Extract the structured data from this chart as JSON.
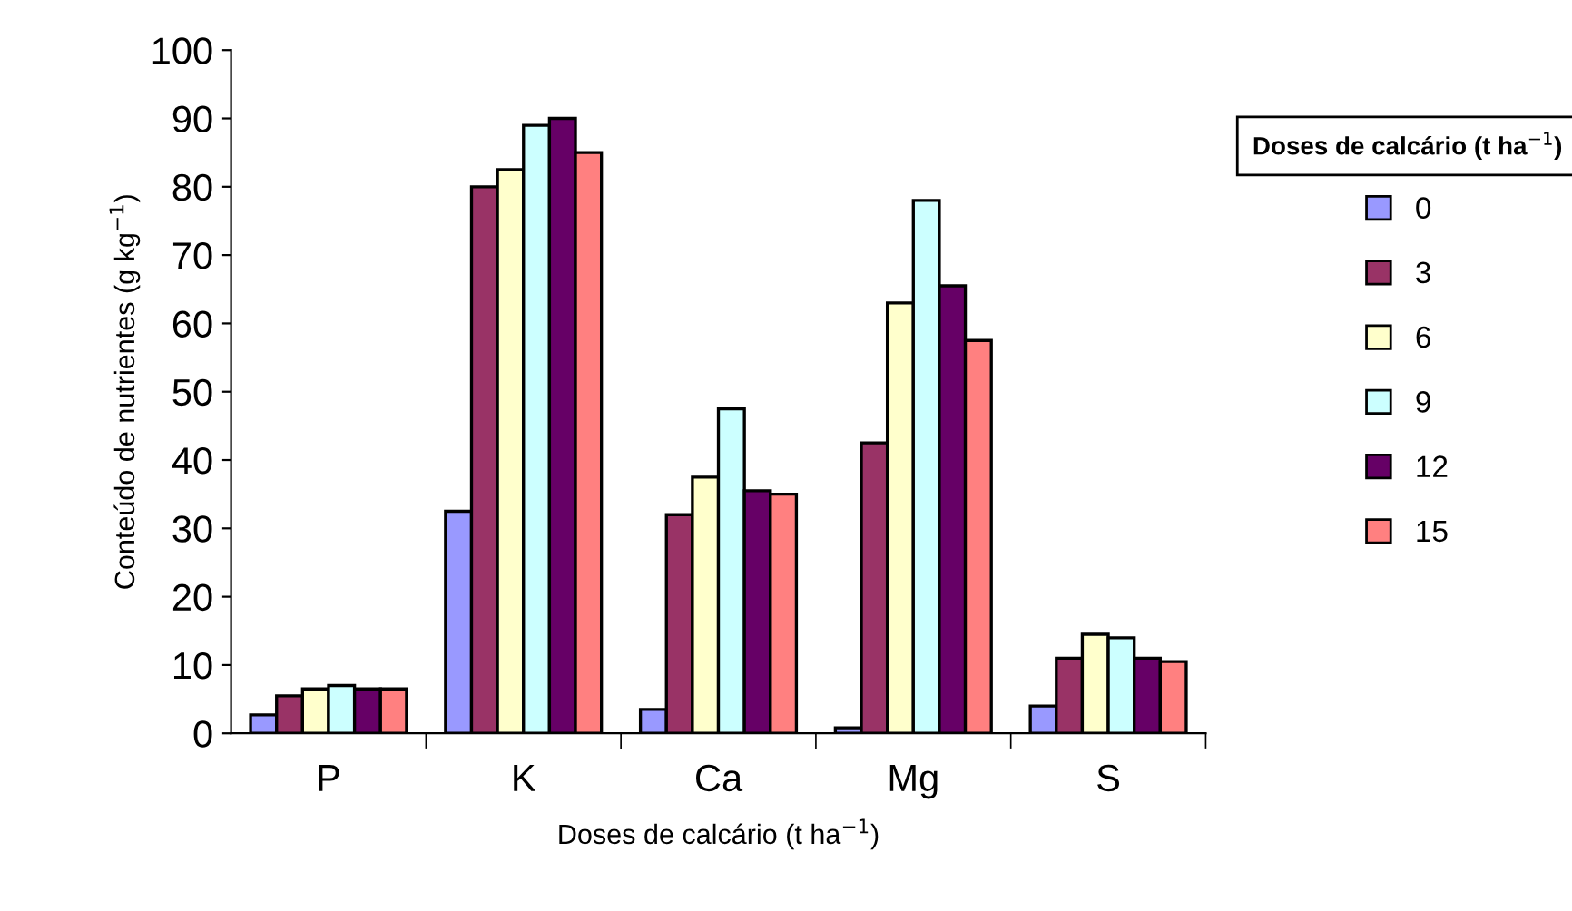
{
  "chart_data": {
    "type": "bar",
    "xlabel": "Doses de calcário (t ha$^{−1}$)",
    "ylabel": "Conteúdo de nutrientes (g kg$^{−1}$)",
    "legend_title": "Doses de calcário (t ha$^{−1}$)",
    "categories": [
      "P",
      "K",
      "Ca",
      "Mg",
      "S"
    ],
    "series": [
      {
        "name": "0",
        "color": "#9999ff",
        "values": [
          2.7,
          32.5,
          3.5,
          0.8,
          4
        ]
      },
      {
        "name": "3",
        "color": "#993366",
        "values": [
          5.5,
          80,
          32,
          42.5,
          11
        ]
      },
      {
        "name": "6",
        "color": "#ffffcc",
        "values": [
          6.5,
          82.5,
          37.5,
          63,
          14.5
        ]
      },
      {
        "name": "9",
        "color": "#ccffff",
        "values": [
          7,
          89,
          47.5,
          78,
          14
        ]
      },
      {
        "name": "12",
        "color": "#660066",
        "values": [
          6.5,
          90,
          35.5,
          65.5,
          11
        ]
      },
      {
        "name": "15",
        "color": "#ff8080",
        "values": [
          6.5,
          85,
          35,
          57.5,
          10.5
        ]
      }
    ],
    "ylim": [
      0,
      100
    ],
    "yticks": [
      0,
      10,
      20,
      30,
      40,
      50,
      60,
      70,
      80,
      90,
      100
    ],
    "grid": false,
    "legend": "right"
  }
}
